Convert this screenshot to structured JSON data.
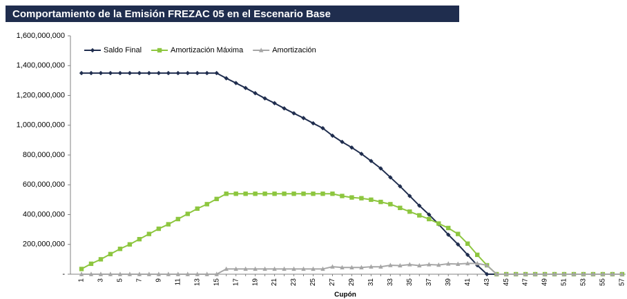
{
  "chart_data": {
    "type": "line",
    "title": "Comportamiento de la Emisión FREZAC 05 en el Escenario Base",
    "x_label": "Cupón",
    "categories": [
      "1",
      null,
      "3",
      null,
      "5",
      null,
      "7",
      null,
      "9",
      null,
      "11",
      null,
      "13",
      null,
      "15",
      null,
      "17",
      null,
      "19",
      null,
      "21",
      null,
      "23",
      null,
      "25",
      null,
      "27",
      null,
      "29",
      null,
      "31",
      null,
      "33",
      null,
      "35",
      null,
      "37",
      null,
      "39",
      null,
      "41",
      null,
      "43",
      null,
      "45",
      null,
      "47",
      null,
      "49",
      null,
      "51",
      null,
      "53",
      null,
      "55",
      null,
      "57"
    ],
    "ylim": [
      0,
      1600000000
    ],
    "yticks": [
      {
        "value": 0,
        "label": "-"
      },
      {
        "value": 200000000,
        "label": "200,000,000"
      },
      {
        "value": 400000000,
        "label": "400,000,000"
      },
      {
        "value": 600000000,
        "label": "600,000,000"
      },
      {
        "value": 800000000,
        "label": "800,000,000"
      },
      {
        "value": 1000000000,
        "label": "1,000,000,000"
      },
      {
        "value": 1200000000,
        "label": "1,200,000,000"
      },
      {
        "value": 1400000000,
        "label": "1,400,000,000"
      },
      {
        "value": 1600000000,
        "label": "1,600,000,000"
      }
    ],
    "grid": false,
    "legend": "top-left",
    "series": [
      {
        "name": "Saldo Final",
        "color": "#1f2d4e",
        "marker": "diamond",
        "values": [
          1350000000,
          1350000000,
          1350000000,
          1350000000,
          1350000000,
          1350000000,
          1350000000,
          1350000000,
          1350000000,
          1350000000,
          1350000000,
          1350000000,
          1350000000,
          1350000000,
          1350000000,
          1315000000,
          1283000000,
          1250000000,
          1215000000,
          1180000000,
          1148000000,
          1113000000,
          1080000000,
          1048000000,
          1013000000,
          980000000,
          930000000,
          888000000,
          850000000,
          808000000,
          760000000,
          710000000,
          650000000,
          590000000,
          525000000,
          460000000,
          400000000,
          335000000,
          265000000,
          200000000,
          130000000,
          60000000,
          0,
          0,
          0,
          0,
          0,
          0,
          0,
          0,
          0,
          0,
          0,
          0,
          0,
          0,
          0
        ]
      },
      {
        "name": "Amortización Máxima",
        "color": "#8dc63f",
        "marker": "square",
        "values": [
          35000000,
          70000000,
          100000000,
          135000000,
          170000000,
          200000000,
          235000000,
          270000000,
          305000000,
          335000000,
          370000000,
          405000000,
          440000000,
          470000000,
          505000000,
          540000000,
          540000000,
          540000000,
          540000000,
          540000000,
          540000000,
          540000000,
          540000000,
          540000000,
          540000000,
          540000000,
          540000000,
          525000000,
          515000000,
          510000000,
          500000000,
          485000000,
          470000000,
          445000000,
          420000000,
          395000000,
          370000000,
          340000000,
          310000000,
          270000000,
          205000000,
          130000000,
          60000000,
          0,
          0,
          0,
          0,
          0,
          0,
          0,
          0,
          0,
          0,
          0,
          0,
          0,
          0
        ]
      },
      {
        "name": "Amortización",
        "color": "#a6a6a6",
        "marker": "triangle",
        "values": [
          0,
          0,
          0,
          0,
          0,
          0,
          0,
          0,
          0,
          0,
          0,
          0,
          0,
          0,
          0,
          35000000,
          35000000,
          35000000,
          35000000,
          35000000,
          35000000,
          35000000,
          35000000,
          35000000,
          35000000,
          35000000,
          50000000,
          45000000,
          45000000,
          45000000,
          50000000,
          50000000,
          60000000,
          58000000,
          65000000,
          58000000,
          65000000,
          62000000,
          70000000,
          68000000,
          72000000,
          72000000,
          60000000,
          0,
          0,
          0,
          0,
          0,
          0,
          0,
          0,
          0,
          0,
          0,
          0,
          0,
          0
        ]
      }
    ]
  }
}
